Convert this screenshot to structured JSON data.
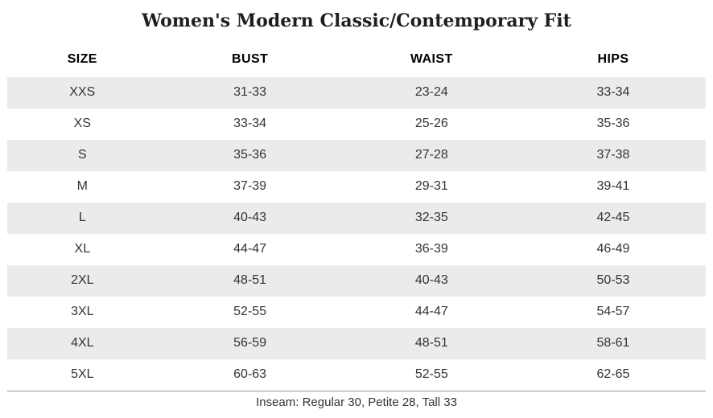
{
  "page": {
    "title": "Women's Modern Classic/Contemporary Fit",
    "footer_note": "Inseam: Regular 30, Petite 28, Tall 33"
  },
  "table": {
    "columns": [
      "SIZE",
      "BUST",
      "WAIST",
      "HIPS"
    ],
    "rows": [
      {
        "size": "XXS",
        "bust": "31-33",
        "waist": "23-24",
        "hips": "33-34"
      },
      {
        "size": "XS",
        "bust": "33-34",
        "waist": "25-26",
        "hips": "35-36"
      },
      {
        "size": "S",
        "bust": "35-36",
        "waist": "27-28",
        "hips": "37-38"
      },
      {
        "size": "M",
        "bust": "37-39",
        "waist": "29-31",
        "hips": "39-41"
      },
      {
        "size": "L",
        "bust": "40-43",
        "waist": "32-35",
        "hips": "42-45"
      },
      {
        "size": "XL",
        "bust": "44-47",
        "waist": "36-39",
        "hips": "46-49"
      },
      {
        "size": "2XL",
        "bust": "48-51",
        "waist": "40-43",
        "hips": "50-53"
      },
      {
        "size": "3XL",
        "bust": "52-55",
        "waist": "44-47",
        "hips": "54-57"
      },
      {
        "size": "4XL",
        "bust": "56-59",
        "waist": "48-51",
        "hips": "58-61"
      },
      {
        "size": "5XL",
        "bust": "60-63",
        "waist": "52-55",
        "hips": "62-65"
      }
    ]
  },
  "colors": {
    "row_alt_bg": "#ebebeb",
    "body_text": "#333333",
    "header_text": "#000000",
    "title_text": "#1f1f1f",
    "footer_border": "#9a9a9a"
  }
}
